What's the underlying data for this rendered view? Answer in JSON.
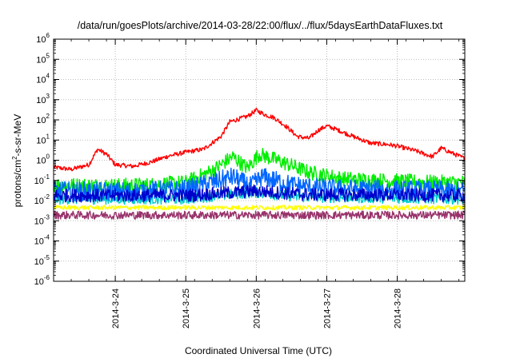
{
  "chart_data": {
    "type": "line",
    "title": "/data/run/goesPlots/archive/2014-03-28/22:00/flux/../flux/5daysEarthDataFluxes.txt",
    "xlabel": "Coordinated Universal Time (UTC)",
    "ylabel": {
      "prefix": "protons/cm",
      "sup": "2",
      "suffix": "-s-sr-MeV"
    },
    "x_range": [
      "2014-03-23T03:00",
      "2014-03-28T23:00"
    ],
    "x_ticks": [
      "2014-3-24",
      "2014-3-25",
      "2014-3-26",
      "2014-3-27",
      "2014-3-28"
    ],
    "y_scale": "log",
    "ylim": [
      1e-06,
      1000000.0
    ],
    "y_ticks": [
      {
        "base": "10",
        "exp": "-6"
      },
      {
        "base": "10",
        "exp": "-5"
      },
      {
        "base": "10",
        "exp": "-4"
      },
      {
        "base": "10",
        "exp": "-3"
      },
      {
        "base": "10",
        "exp": "-2"
      },
      {
        "base": "10",
        "exp": "-1"
      },
      {
        "base": "10",
        "exp": "0"
      },
      {
        "base": "10",
        "exp": "1"
      },
      {
        "base": "10",
        "exp": "2"
      },
      {
        "base": "10",
        "exp": "3"
      },
      {
        "base": "10",
        "exp": "4"
      },
      {
        "base": "10",
        "exp": "5"
      },
      {
        "base": "10",
        "exp": "6"
      }
    ],
    "grid": true,
    "series": [
      {
        "color": "#ff0000",
        "noise": 0.05,
        "points": [
          [
            "2014-03-23T03:00",
            0.45
          ],
          [
            "2014-03-23T09:00",
            0.35
          ],
          [
            "2014-03-23T15:00",
            0.6
          ],
          [
            "2014-03-23T18:00",
            3.5
          ],
          [
            "2014-03-23T21:00",
            2.0
          ],
          [
            "2014-03-24T00:00",
            0.6
          ],
          [
            "2014-03-24T06:00",
            0.5
          ],
          [
            "2014-03-24T12:00",
            0.8
          ],
          [
            "2014-03-24T18:00",
            1.6
          ],
          [
            "2014-03-25T00:00",
            2.5
          ],
          [
            "2014-03-25T06:00",
            3.5
          ],
          [
            "2014-03-25T12:00",
            15
          ],
          [
            "2014-03-25T15:00",
            80
          ],
          [
            "2014-03-25T21:00",
            150
          ],
          [
            "2014-03-26T00:00",
            300
          ],
          [
            "2014-03-26T03:00",
            180
          ],
          [
            "2014-03-26T06:00",
            130
          ],
          [
            "2014-03-26T10:00",
            50
          ],
          [
            "2014-03-26T14:00",
            15
          ],
          [
            "2014-03-26T18:00",
            12
          ],
          [
            "2014-03-26T21:00",
            30
          ],
          [
            "2014-03-27T00:00",
            50
          ],
          [
            "2014-03-27T03:00",
            35
          ],
          [
            "2014-03-27T09:00",
            15
          ],
          [
            "2014-03-27T15:00",
            7
          ],
          [
            "2014-03-27T21:00",
            6
          ],
          [
            "2014-03-28T00:00",
            5
          ],
          [
            "2014-03-28T06:00",
            3
          ],
          [
            "2014-03-28T12:00",
            1.5
          ],
          [
            "2014-03-28T15:00",
            4
          ],
          [
            "2014-03-28T18:00",
            2.5
          ],
          [
            "2014-03-28T23:00",
            1.2
          ]
        ]
      },
      {
        "color": "#00ee00",
        "noise": 0.17,
        "points": [
          [
            "2014-03-23T03:00",
            0.06
          ],
          [
            "2014-03-24T00:00",
            0.055
          ],
          [
            "2014-03-24T12:00",
            0.06
          ],
          [
            "2014-03-25T00:00",
            0.08
          ],
          [
            "2014-03-25T09:00",
            0.3
          ],
          [
            "2014-03-25T16:00",
            1.5
          ],
          [
            "2014-03-25T21:00",
            0.4
          ],
          [
            "2014-03-26T01:00",
            2.0
          ],
          [
            "2014-03-26T09:00",
            0.8
          ],
          [
            "2014-03-26T18:00",
            0.25
          ],
          [
            "2014-03-27T06:00",
            0.12
          ],
          [
            "2014-03-27T18:00",
            0.1
          ],
          [
            "2014-03-28T12:00",
            0.08
          ],
          [
            "2014-03-28T23:00",
            0.08
          ]
        ]
      },
      {
        "color": "#00cccc",
        "noise": 0.12,
        "points": [
          [
            "2014-03-23T03:00",
            0.012
          ],
          [
            "2014-03-25T00:00",
            0.012
          ],
          [
            "2014-03-25T15:00",
            0.02
          ],
          [
            "2014-03-26T00:00",
            0.025
          ],
          [
            "2014-03-26T15:00",
            0.015
          ],
          [
            "2014-03-28T23:00",
            0.012
          ]
        ]
      },
      {
        "color": "#0066ff",
        "noise": 0.22,
        "points": [
          [
            "2014-03-23T03:00",
            0.03
          ],
          [
            "2014-03-24T00:00",
            0.028
          ],
          [
            "2014-03-25T00:00",
            0.035
          ],
          [
            "2014-03-25T16:00",
            0.15
          ],
          [
            "2014-03-25T22:00",
            0.05
          ],
          [
            "2014-03-26T02:00",
            0.15
          ],
          [
            "2014-03-26T12:00",
            0.06
          ],
          [
            "2014-03-27T00:00",
            0.04
          ],
          [
            "2014-03-28T23:00",
            0.03
          ]
        ]
      },
      {
        "color": "#0000cc",
        "noise": 0.15,
        "points": [
          [
            "2014-03-23T03:00",
            0.018
          ],
          [
            "2014-03-25T00:00",
            0.018
          ],
          [
            "2014-03-25T16:00",
            0.025
          ],
          [
            "2014-03-26T00:00",
            0.03
          ],
          [
            "2014-03-26T16:00",
            0.02
          ],
          [
            "2014-03-28T23:00",
            0.018
          ]
        ]
      },
      {
        "color": "#ffff00",
        "noise": 0.05,
        "points": [
          [
            "2014-03-23T03:00",
            0.0045
          ],
          [
            "2014-03-28T23:00",
            0.0045
          ]
        ]
      },
      {
        "color": "#99336b",
        "noise": 0.09,
        "points": [
          [
            "2014-03-23T03:00",
            0.0019
          ],
          [
            "2014-03-28T23:00",
            0.0019
          ]
        ]
      }
    ]
  }
}
